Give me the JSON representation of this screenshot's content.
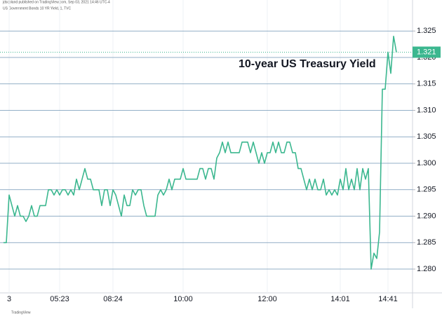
{
  "chart_data": {
    "type": "line",
    "header": "jdscoland published on TradingView.com, Sep 03, 2021 14:46 UTC-4",
    "legend_text": "US Government Bonds 10 YR Yield, 1, TVC",
    "title": "10-year US Treasury Yield",
    "footer": "TradingView",
    "categories": [
      null,
      null,
      "3",
      null,
      null,
      null,
      null,
      null,
      null,
      null,
      null,
      null,
      null,
      null,
      null,
      null,
      null,
      null,
      null,
      null,
      "05:23",
      null,
      null,
      null,
      null,
      null,
      null,
      null,
      null,
      null,
      null,
      null,
      null,
      null,
      null,
      null,
      null,
      null,
      null,
      "08:24",
      null,
      null,
      null,
      null,
      null,
      null,
      null,
      null,
      null,
      null,
      null,
      null,
      null,
      null,
      null,
      null,
      null,
      null,
      null,
      null,
      null,
      null,
      null,
      null,
      "10:00",
      null,
      null,
      null,
      null,
      null,
      null,
      null,
      null,
      null,
      null,
      null,
      null,
      null,
      null,
      null,
      null,
      null,
      null,
      null,
      null,
      null,
      null,
      null,
      null,
      null,
      null,
      null,
      null,
      null,
      "12:00",
      null,
      null,
      null,
      null,
      null,
      null,
      null,
      null,
      null,
      null,
      null,
      null,
      null,
      null,
      null,
      null,
      null,
      null,
      null,
      null,
      null,
      null,
      null,
      null,
      null,
      "14:01",
      null,
      null,
      null,
      null,
      null,
      null,
      null,
      null,
      null,
      null,
      null,
      null,
      null,
      null,
      null,
      null,
      "14:41",
      null,
      null,
      null
    ],
    "values": [
      1.285,
      1.285,
      1.294,
      1.292,
      1.29,
      1.292,
      1.29,
      1.29,
      1.289,
      1.29,
      1.292,
      1.29,
      1.29,
      1.292,
      1.292,
      1.292,
      1.295,
      1.295,
      1.294,
      1.295,
      1.294,
      1.295,
      1.295,
      1.294,
      1.295,
      1.294,
      1.297,
      1.295,
      1.297,
      1.299,
      1.297,
      1.297,
      1.295,
      1.295,
      1.295,
      1.292,
      1.295,
      1.295,
      1.292,
      1.295,
      1.294,
      1.292,
      1.29,
      1.294,
      1.292,
      1.292,
      1.295,
      1.294,
      1.295,
      1.295,
      1.292,
      1.29,
      1.29,
      1.29,
      1.29,
      1.294,
      1.295,
      1.294,
      1.295,
      1.297,
      1.295,
      1.297,
      1.297,
      1.297,
      1.299,
      1.297,
      1.297,
      1.297,
      1.297,
      1.297,
      1.299,
      1.299,
      1.297,
      1.299,
      1.299,
      1.297,
      1.301,
      1.302,
      1.304,
      1.302,
      1.304,
      1.302,
      1.302,
      1.302,
      1.302,
      1.304,
      1.304,
      1.304,
      1.302,
      1.304,
      1.302,
      1.3,
      1.302,
      1.3,
      1.302,
      1.302,
      1.304,
      1.302,
      1.304,
      1.302,
      1.302,
      1.304,
      1.304,
      1.302,
      1.302,
      1.299,
      1.299,
      1.297,
      1.295,
      1.297,
      1.295,
      1.297,
      1.295,
      1.295,
      1.297,
      1.294,
      1.295,
      1.294,
      1.295,
      1.294,
      1.297,
      1.295,
      1.299,
      1.295,
      1.297,
      1.295,
      1.299,
      1.295,
      1.299,
      1.297,
      1.299,
      1.28,
      1.283,
      1.282,
      1.287,
      1.314,
      1.314,
      1.321,
      1.317,
      1.324,
      1.321
    ],
    "color": "#3bb78f",
    "last_value": 1.321,
    "ylim": [
      1.2755,
      1.3302
    ],
    "yticks": [
      {
        "value": 1.28,
        "label": "1.280"
      },
      1.285,
      {
        "value": 1.29,
        "label": "1.290"
      },
      1.295,
      {
        "value": 1.3,
        "label": "1.300"
      },
      1.305,
      {
        "value": 1.31,
        "label": "1.310"
      },
      1.315,
      {
        "value": 1.32,
        "label": "1.320"
      },
      1.325
    ],
    "grid": true,
    "grid_color": "#6f95b5"
  }
}
